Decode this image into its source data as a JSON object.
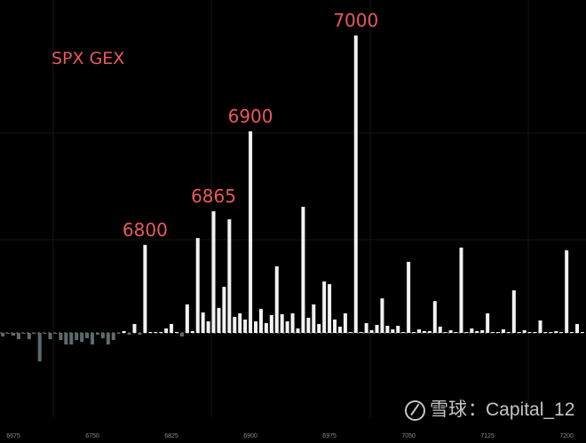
{
  "chart_data": {
    "type": "bar",
    "title": "SPX GEX",
    "xlabel": "",
    "ylabel": "",
    "grid": true,
    "colors": {
      "positive": "#f2f2f2",
      "negative": "#5e6a6d",
      "annotation": "#e8595c",
      "background": "#000000"
    },
    "x_ticks": [
      6675,
      6750,
      6825,
      6900,
      6975,
      7050,
      7125,
      7200
    ],
    "xlim": [
      6665,
      7215
    ],
    "ylim": [
      -10,
      100
    ],
    "annotations": [
      {
        "strike": 6800,
        "text": "6800"
      },
      {
        "strike": 6865,
        "text": "6865"
      },
      {
        "strike": 6900,
        "text": "6900"
      },
      {
        "strike": 7000,
        "text": "7000"
      }
    ],
    "strikes": [
      6665,
      6670,
      6675,
      6680,
      6685,
      6690,
      6695,
      6700,
      6705,
      6710,
      6715,
      6720,
      6725,
      6730,
      6735,
      6740,
      6745,
      6750,
      6755,
      6760,
      6765,
      6770,
      6775,
      6780,
      6785,
      6790,
      6795,
      6800,
      6805,
      6810,
      6815,
      6820,
      6825,
      6830,
      6835,
      6840,
      6845,
      6850,
      6855,
      6860,
      6865,
      6870,
      6875,
      6880,
      6885,
      6890,
      6895,
      6900,
      6905,
      6910,
      6915,
      6920,
      6925,
      6930,
      6935,
      6940,
      6945,
      6950,
      6955,
      6960,
      6965,
      6970,
      6975,
      6980,
      6985,
      6990,
      6995,
      7000,
      7005,
      7010,
      7015,
      7020,
      7025,
      7030,
      7035,
      7040,
      7045,
      7050,
      7055,
      7060,
      7065,
      7070,
      7075,
      7080,
      7085,
      7090,
      7095,
      7100,
      7105,
      7110,
      7115,
      7120,
      7125,
      7130,
      7135,
      7140,
      7145,
      7150,
      7155,
      7160,
      7165,
      7170,
      7175,
      7180,
      7185,
      7190,
      7195,
      7200,
      7205,
      7210,
      7215
    ],
    "values": [
      -1.2,
      -0.3,
      -0.9,
      -2.1,
      -0.3,
      -2.1,
      -0.3,
      -9.6,
      -0.3,
      -2.1,
      -0.3,
      -2.4,
      -3.9,
      -3.9,
      -2.4,
      -3.0,
      -1.8,
      -3.9,
      -0.6,
      -1.8,
      -3.9,
      -2.4,
      -0.3,
      0.6,
      -0.6,
      3.0,
      -0.6,
      29.6,
      0.3,
      0.3,
      0.3,
      1.5,
      3.0,
      0.3,
      -1.2,
      9.6,
      0.6,
      31.9,
      6.9,
      3.9,
      40.9,
      8.4,
      15.5,
      38.2,
      5.4,
      6.6,
      4.5,
      67.8,
      3.9,
      8.1,
      3.3,
      6.0,
      22.4,
      6.3,
      3.9,
      6.6,
      1.5,
      42.4,
      5.1,
      9.6,
      3.0,
      17.3,
      16.4,
      4.5,
      2.1,
      6.6,
      0.3,
      100,
      0.3,
      3.3,
      0.9,
      2.7,
      11.6,
      2.4,
      1.2,
      2.4,
      0.3,
      23.9,
      0.3,
      1.2,
      0.6,
      0.6,
      10.7,
      2.1,
      0.3,
      0.9,
      0.3,
      28.7,
      0.3,
      1.5,
      0.6,
      0.9,
      6.6,
      0.3,
      0.3,
      1.2,
      0.3,
      14.3,
      0.3,
      0.9,
      0.3,
      0.3,
      4.2,
      0.3,
      0.3,
      0.6,
      0.3,
      27.8,
      0.3,
      3.0,
      0.3
    ]
  },
  "watermark": {
    "brand": "雪球",
    "separator": "：",
    "user": "Capital_12"
  }
}
